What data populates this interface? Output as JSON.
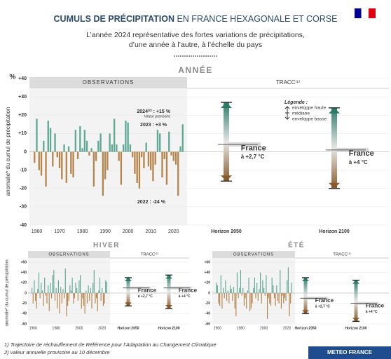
{
  "header": {
    "title_bold": "CUMULS DE PRÉCIPITATION",
    "title_rest": "EN FRANCE HEXAGONALE ET CORSE",
    "subtitle": [
      "L’année 2024 représentative des fortes variations de précipitations,",
      "d’une année à l’autre, à l’échelle du pays"
    ]
  },
  "footer": {
    "notes": [
      "1) Trajectoire de réchauffement de Référence pour l’Adaptation au Changement Climatique",
      "2) valeur annuelle provisoire au 10 décembre"
    ],
    "brand": "METEO FRANCE"
  },
  "chart_data": [
    {
      "type": "bar",
      "title": "ANNÉE",
      "unit": "%",
      "y_label": "anomalie* du cumul de précipitation",
      "observations_label": "OBSERVATIONS",
      "tracc_label": "TRACC⁽¹⁾",
      "positive_color": "#5fa894",
      "negative_color": "#b5844a",
      "high_color": "#2a7c68",
      "low_color": "#8c5a2a",
      "x": [
        1959,
        1960,
        1961,
        1962,
        1963,
        1964,
        1965,
        1966,
        1967,
        1968,
        1969,
        1970,
        1971,
        1972,
        1973,
        1974,
        1975,
        1976,
        1977,
        1978,
        1979,
        1980,
        1981,
        1982,
        1983,
        1984,
        1985,
        1986,
        1987,
        1988,
        1989,
        1990,
        1991,
        1992,
        1993,
        1994,
        1995,
        1996,
        1997,
        1998,
        1999,
        2000,
        2001,
        2002,
        2003,
        2004,
        2005,
        2006,
        2007,
        2008,
        2009,
        2010,
        2011,
        2012,
        2013,
        2014,
        2015,
        2016,
        2017,
        2018,
        2019,
        2020,
        2021,
        2022,
        2023,
        2024
      ],
      "values": [
        -6,
        18,
        -10,
        -13,
        6,
        -19,
        17,
        13,
        -8,
        10,
        -3,
        -9,
        -15,
        4,
        -17,
        3,
        -12,
        -14,
        12,
        -4,
        14,
        2,
        12,
        6,
        -2,
        2,
        -19,
        -5,
        6,
        10,
        -24,
        -15,
        -10,
        10,
        4,
        18,
        4,
        -5,
        -18,
        4,
        17,
        16,
        4,
        -3,
        -12,
        -17,
        -20,
        -3,
        -9,
        5,
        -8,
        -10,
        -16,
        -7,
        12,
        10,
        -14,
        -4,
        -18,
        11,
        -2,
        -5,
        -7,
        -24,
        3,
        15
      ],
      "xlim": [
        1958,
        2025
      ],
      "xticks": [
        1960,
        1970,
        1980,
        1990,
        2000,
        2010,
        2020
      ],
      "ylim": [
        -40,
        40
      ],
      "yticks": [
        -40,
        -30,
        -20,
        -10,
        0,
        {
          "value": 10,
          "label": "+10"
        },
        {
          "value": 20,
          "label": "+20"
        },
        {
          "value": 30,
          "label": "+30"
        },
        {
          "value": 40,
          "label": "+40"
        }
      ],
      "annotations": [
        "2024⁽²⁾ : +15 %",
        "Valeur provisoire",
        "2023 : +3 %",
        "2022 : -24 %"
      ],
      "horizons": [
        {
          "name": "Horizon 2050",
          "high": 27,
          "median": 4,
          "low": -16,
          "label": [
            "France",
            "à +2,7 °C"
          ]
        },
        {
          "name": "Horizon 2100",
          "high": 24,
          "median": 1,
          "low": -20,
          "label": [
            "France",
            "à +4 °C"
          ]
        }
      ],
      "legend": {
        "title": "Légende :",
        "items": [
          "enveloppe haute",
          "médiane",
          "enveloppe basse"
        ]
      }
    },
    {
      "type": "bar",
      "title": "HIVER",
      "y_label": "anomalie* du cumul de précipitation",
      "observations_label": "OBSERVATIONS",
      "tracc_label": "TRACC⁽¹⁾",
      "positive_color": "#5fa894",
      "negative_color": "#b5844a",
      "high_color": "#2a7c68",
      "low_color": "#8c5a2a",
      "x": [
        1959,
        1960,
        1961,
        1962,
        1963,
        1964,
        1965,
        1966,
        1967,
        1968,
        1969,
        1970,
        1971,
        1972,
        1973,
        1974,
        1975,
        1976,
        1977,
        1978,
        1979,
        1980,
        1981,
        1982,
        1983,
        1984,
        1985,
        1986,
        1987,
        1988,
        1989,
        1990,
        1991,
        1992,
        1993,
        1994,
        1995,
        1996,
        1997,
        1998,
        1999,
        2000,
        2001,
        2002,
        2003,
        2004,
        2005,
        2006,
        2007,
        2008,
        2009,
        2010,
        2011,
        2012,
        2013,
        2014,
        2015,
        2016,
        2017,
        2018,
        2019,
        2020,
        2021,
        2022,
        2023,
        2024
      ],
      "values": [
        10,
        -20,
        25,
        -15,
        -30,
        8,
        40,
        -10,
        20,
        5,
        -25,
        30,
        -5,
        -20,
        15,
        -35,
        20,
        -10,
        35,
        45,
        -15,
        10,
        -30,
        25,
        -40,
        12,
        -20,
        8,
        -10,
        48,
        -45,
        -25,
        -15,
        15,
        5,
        30,
        -20,
        -10,
        20,
        10,
        -15,
        25,
        35,
        -30,
        -10,
        -25,
        -40,
        5,
        -20,
        15,
        -15,
        10,
        -30,
        20,
        45,
        -20,
        -10,
        -35,
        5,
        30,
        -15,
        10,
        -25,
        -20,
        25,
        22
      ],
      "xlim": [
        1958,
        2025
      ],
      "xticks": [
        1960,
        1980,
        2000,
        2020
      ],
      "ylim": [
        -60,
        60
      ],
      "yticks": [
        -60,
        -40,
        -20,
        0,
        {
          "value": 20,
          "label": "+20"
        },
        {
          "value": 40,
          "label": "+40"
        },
        {
          "value": 60,
          "label": "+60"
        }
      ],
      "horizons": [
        {
          "name": "Horizon 2050",
          "high": 30,
          "median": 10,
          "low": -25,
          "label": [
            "France",
            "à +2,7 °C"
          ]
        },
        {
          "name": "Horizon 2100",
          "high": 35,
          "median": 10,
          "low": -30,
          "label": [
            "France",
            "à +4 °C"
          ]
        }
      ]
    },
    {
      "type": "bar",
      "title": "ÉTÉ",
      "observations_label": "OBSERVATIONS",
      "tracc_label": "TRACC⁽¹⁾",
      "positive_color": "#5fa894",
      "negative_color": "#b5844a",
      "high_color": "#2a7c68",
      "low_color": "#8c5a2a",
      "x": [
        1959,
        1960,
        1961,
        1962,
        1963,
        1964,
        1965,
        1966,
        1967,
        1968,
        1969,
        1970,
        1971,
        1972,
        1973,
        1974,
        1975,
        1976,
        1977,
        1978,
        1979,
        1980,
        1981,
        1982,
        1983,
        1984,
        1985,
        1986,
        1987,
        1988,
        1989,
        1990,
        1991,
        1992,
        1993,
        1994,
        1995,
        1996,
        1997,
        1998,
        1999,
        2000,
        2001,
        2002,
        2003,
        2004,
        2005,
        2006,
        2007,
        2008,
        2009,
        2010,
        2011,
        2012,
        2013,
        2014,
        2015,
        2016,
        2017,
        2018,
        2019,
        2020,
        2021,
        2022,
        2023,
        2024
      ],
      "values": [
        20,
        15,
        -20,
        -25,
        35,
        -30,
        10,
        -10,
        25,
        -15,
        5,
        -20,
        15,
        8,
        -15,
        12,
        -30,
        -45,
        40,
        -10,
        10,
        45,
        -5,
        10,
        -25,
        -10,
        -30,
        5,
        30,
        -35,
        -30,
        -20,
        10,
        30,
        -10,
        20,
        -15,
        8,
        40,
        -20,
        25,
        10,
        -5,
        35,
        -50,
        -10,
        -20,
        -25,
        30,
        15,
        -10,
        -25,
        15,
        -15,
        -20,
        45,
        -30,
        -5,
        -20,
        -10,
        -15,
        25,
        50,
        -45,
        -20,
        20
      ],
      "xlim": [
        1958,
        2025
      ],
      "xticks": [
        1960,
        1980,
        2000,
        2020
      ],
      "ylim": [
        -60,
        60
      ],
      "yticks": [
        -60,
        -40,
        -20,
        0,
        {
          "value": 20,
          "label": "+20"
        },
        {
          "value": 40,
          "label": "+40"
        },
        {
          "value": 60,
          "label": "+60"
        }
      ],
      "horizons": [
        {
          "name": "Horizon 2050",
          "high": 30,
          "median": -10,
          "low": -40,
          "label": [
            "France",
            "à +2,7 °C"
          ]
        },
        {
          "name": "Horizon 2100",
          "high": 25,
          "median": -20,
          "low": -55,
          "label": [
            "France",
            "à +4 °C"
          ]
        }
      ]
    }
  ]
}
